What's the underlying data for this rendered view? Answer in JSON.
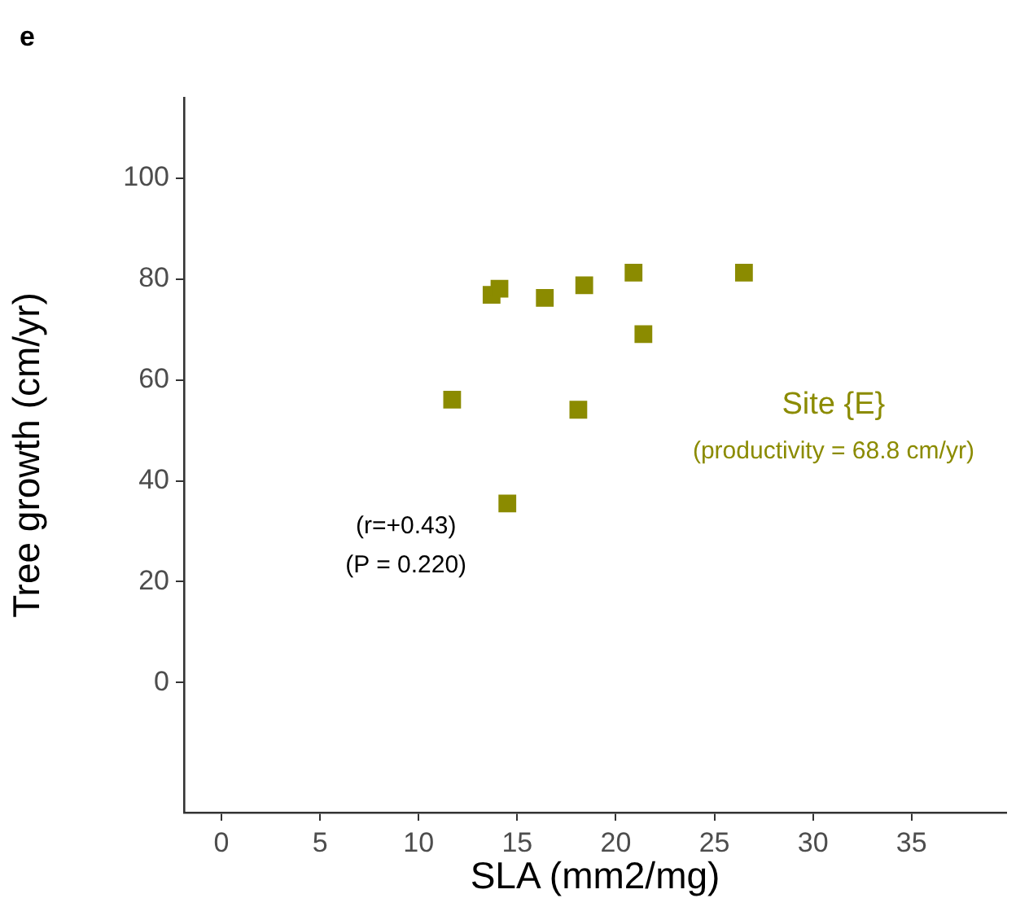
{
  "chart_data": {
    "type": "scatter",
    "title": "e",
    "xlabel": "SLA (mm2/mg)",
    "ylabel": "Tree growth (cm/yr)",
    "annotations": [
      "(r=+0.43)",
      "(P = 0.220)",
      "Site {E}",
      "(productivity = 68.8 cm/yr)"
    ],
    "x": [
      11.7,
      13.7,
      14.1,
      14.5,
      16.4,
      18.1,
      18.4,
      20.9,
      21.4,
      26.5
    ],
    "series": [
      {
        "color": "#8b8b00",
        "values": [
          56.1,
          76.9,
          78.1,
          35.5,
          76.3,
          54.1,
          78.8,
          81.3,
          69.1,
          81.3
        ]
      }
    ],
    "xlim": [
      -1.9,
      39.8
    ],
    "xticks": [
      0,
      5,
      10,
      15,
      20,
      25,
      30,
      35
    ],
    "ylim": [
      -25.8,
      116
    ],
    "yticks": [
      0,
      20,
      40,
      60,
      80,
      100
    ],
    "marker": "square",
    "grid": false,
    "legend": false
  }
}
